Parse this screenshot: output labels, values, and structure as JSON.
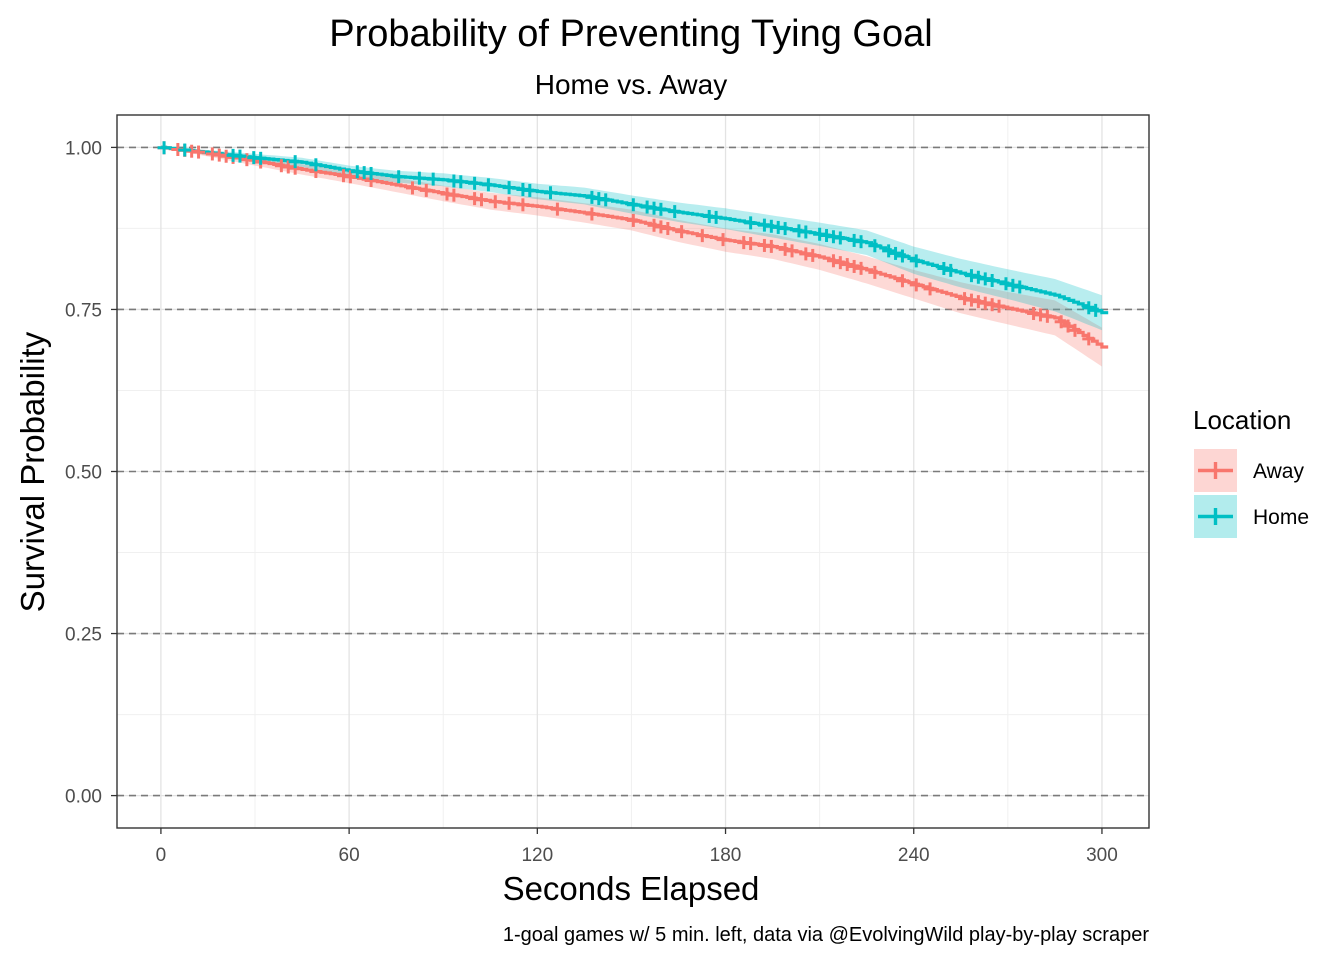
{
  "chart_data": {
    "type": "line",
    "title": "Probability of Preventing Tying Goal",
    "subtitle": "Home vs. Away",
    "xlabel": "Seconds Elapsed",
    "ylabel": "Survival Probability",
    "caption": "1-goal games w/ 5 min. left, data via @EvolvingWild play-by-play scraper",
    "xlim": [
      -14,
      315
    ],
    "ylim": [
      -0.05,
      1.05
    ],
    "x_ticks": [
      0,
      60,
      120,
      180,
      240,
      300
    ],
    "y_ticks": [
      0.0,
      0.25,
      0.5,
      0.75,
      1.0
    ],
    "y_tick_labels": [
      "0.00",
      "0.25",
      "0.50",
      "0.75",
      "1.00"
    ],
    "x_tick_labels": [
      "0",
      "60",
      "120",
      "180",
      "240",
      "300"
    ],
    "grid": true,
    "reference_lines_y": [
      0.0,
      0.25,
      0.5,
      0.75,
      1.0
    ],
    "step": true,
    "confidence_band": true,
    "censor_marks": "+",
    "legend": {
      "title": "Location",
      "position": "right"
    },
    "x": [
      0,
      15,
      30,
      45,
      60,
      75,
      90,
      105,
      120,
      135,
      150,
      165,
      180,
      195,
      210,
      225,
      240,
      255,
      270,
      285,
      300
    ],
    "series": [
      {
        "name": "Away",
        "color": "#F8766D",
        "band_color": "#F8766D",
        "values": [
          1.0,
          0.991,
          0.979,
          0.966,
          0.955,
          0.942,
          0.929,
          0.917,
          0.909,
          0.899,
          0.888,
          0.871,
          0.857,
          0.847,
          0.831,
          0.811,
          0.789,
          0.768,
          0.752,
          0.737,
          0.692
        ],
        "lower": [
          1.0,
          0.986,
          0.972,
          0.958,
          0.945,
          0.931,
          0.917,
          0.904,
          0.895,
          0.884,
          0.872,
          0.854,
          0.839,
          0.828,
          0.811,
          0.79,
          0.767,
          0.744,
          0.727,
          0.71,
          0.662
        ],
        "upper": [
          1.0,
          0.996,
          0.986,
          0.974,
          0.965,
          0.953,
          0.941,
          0.93,
          0.923,
          0.914,
          0.904,
          0.888,
          0.875,
          0.866,
          0.851,
          0.832,
          0.811,
          0.792,
          0.777,
          0.764,
          0.722
        ]
      },
      {
        "name": "Home",
        "color": "#00BFC4",
        "band_color": "#00BFC4",
        "values": [
          1.0,
          0.992,
          0.984,
          0.977,
          0.964,
          0.955,
          0.95,
          0.942,
          0.932,
          0.925,
          0.912,
          0.9,
          0.89,
          0.878,
          0.866,
          0.853,
          0.826,
          0.806,
          0.789,
          0.772,
          0.745
        ],
        "lower": [
          1.0,
          0.988,
          0.978,
          0.97,
          0.956,
          0.946,
          0.94,
          0.931,
          0.92,
          0.912,
          0.898,
          0.885,
          0.874,
          0.861,
          0.848,
          0.834,
          0.805,
          0.784,
          0.766,
          0.747,
          0.718
        ],
        "upper": [
          1.0,
          0.996,
          0.99,
          0.984,
          0.972,
          0.964,
          0.96,
          0.953,
          0.944,
          0.938,
          0.926,
          0.915,
          0.906,
          0.895,
          0.884,
          0.872,
          0.847,
          0.828,
          0.812,
          0.797,
          0.772
        ]
      }
    ]
  }
}
